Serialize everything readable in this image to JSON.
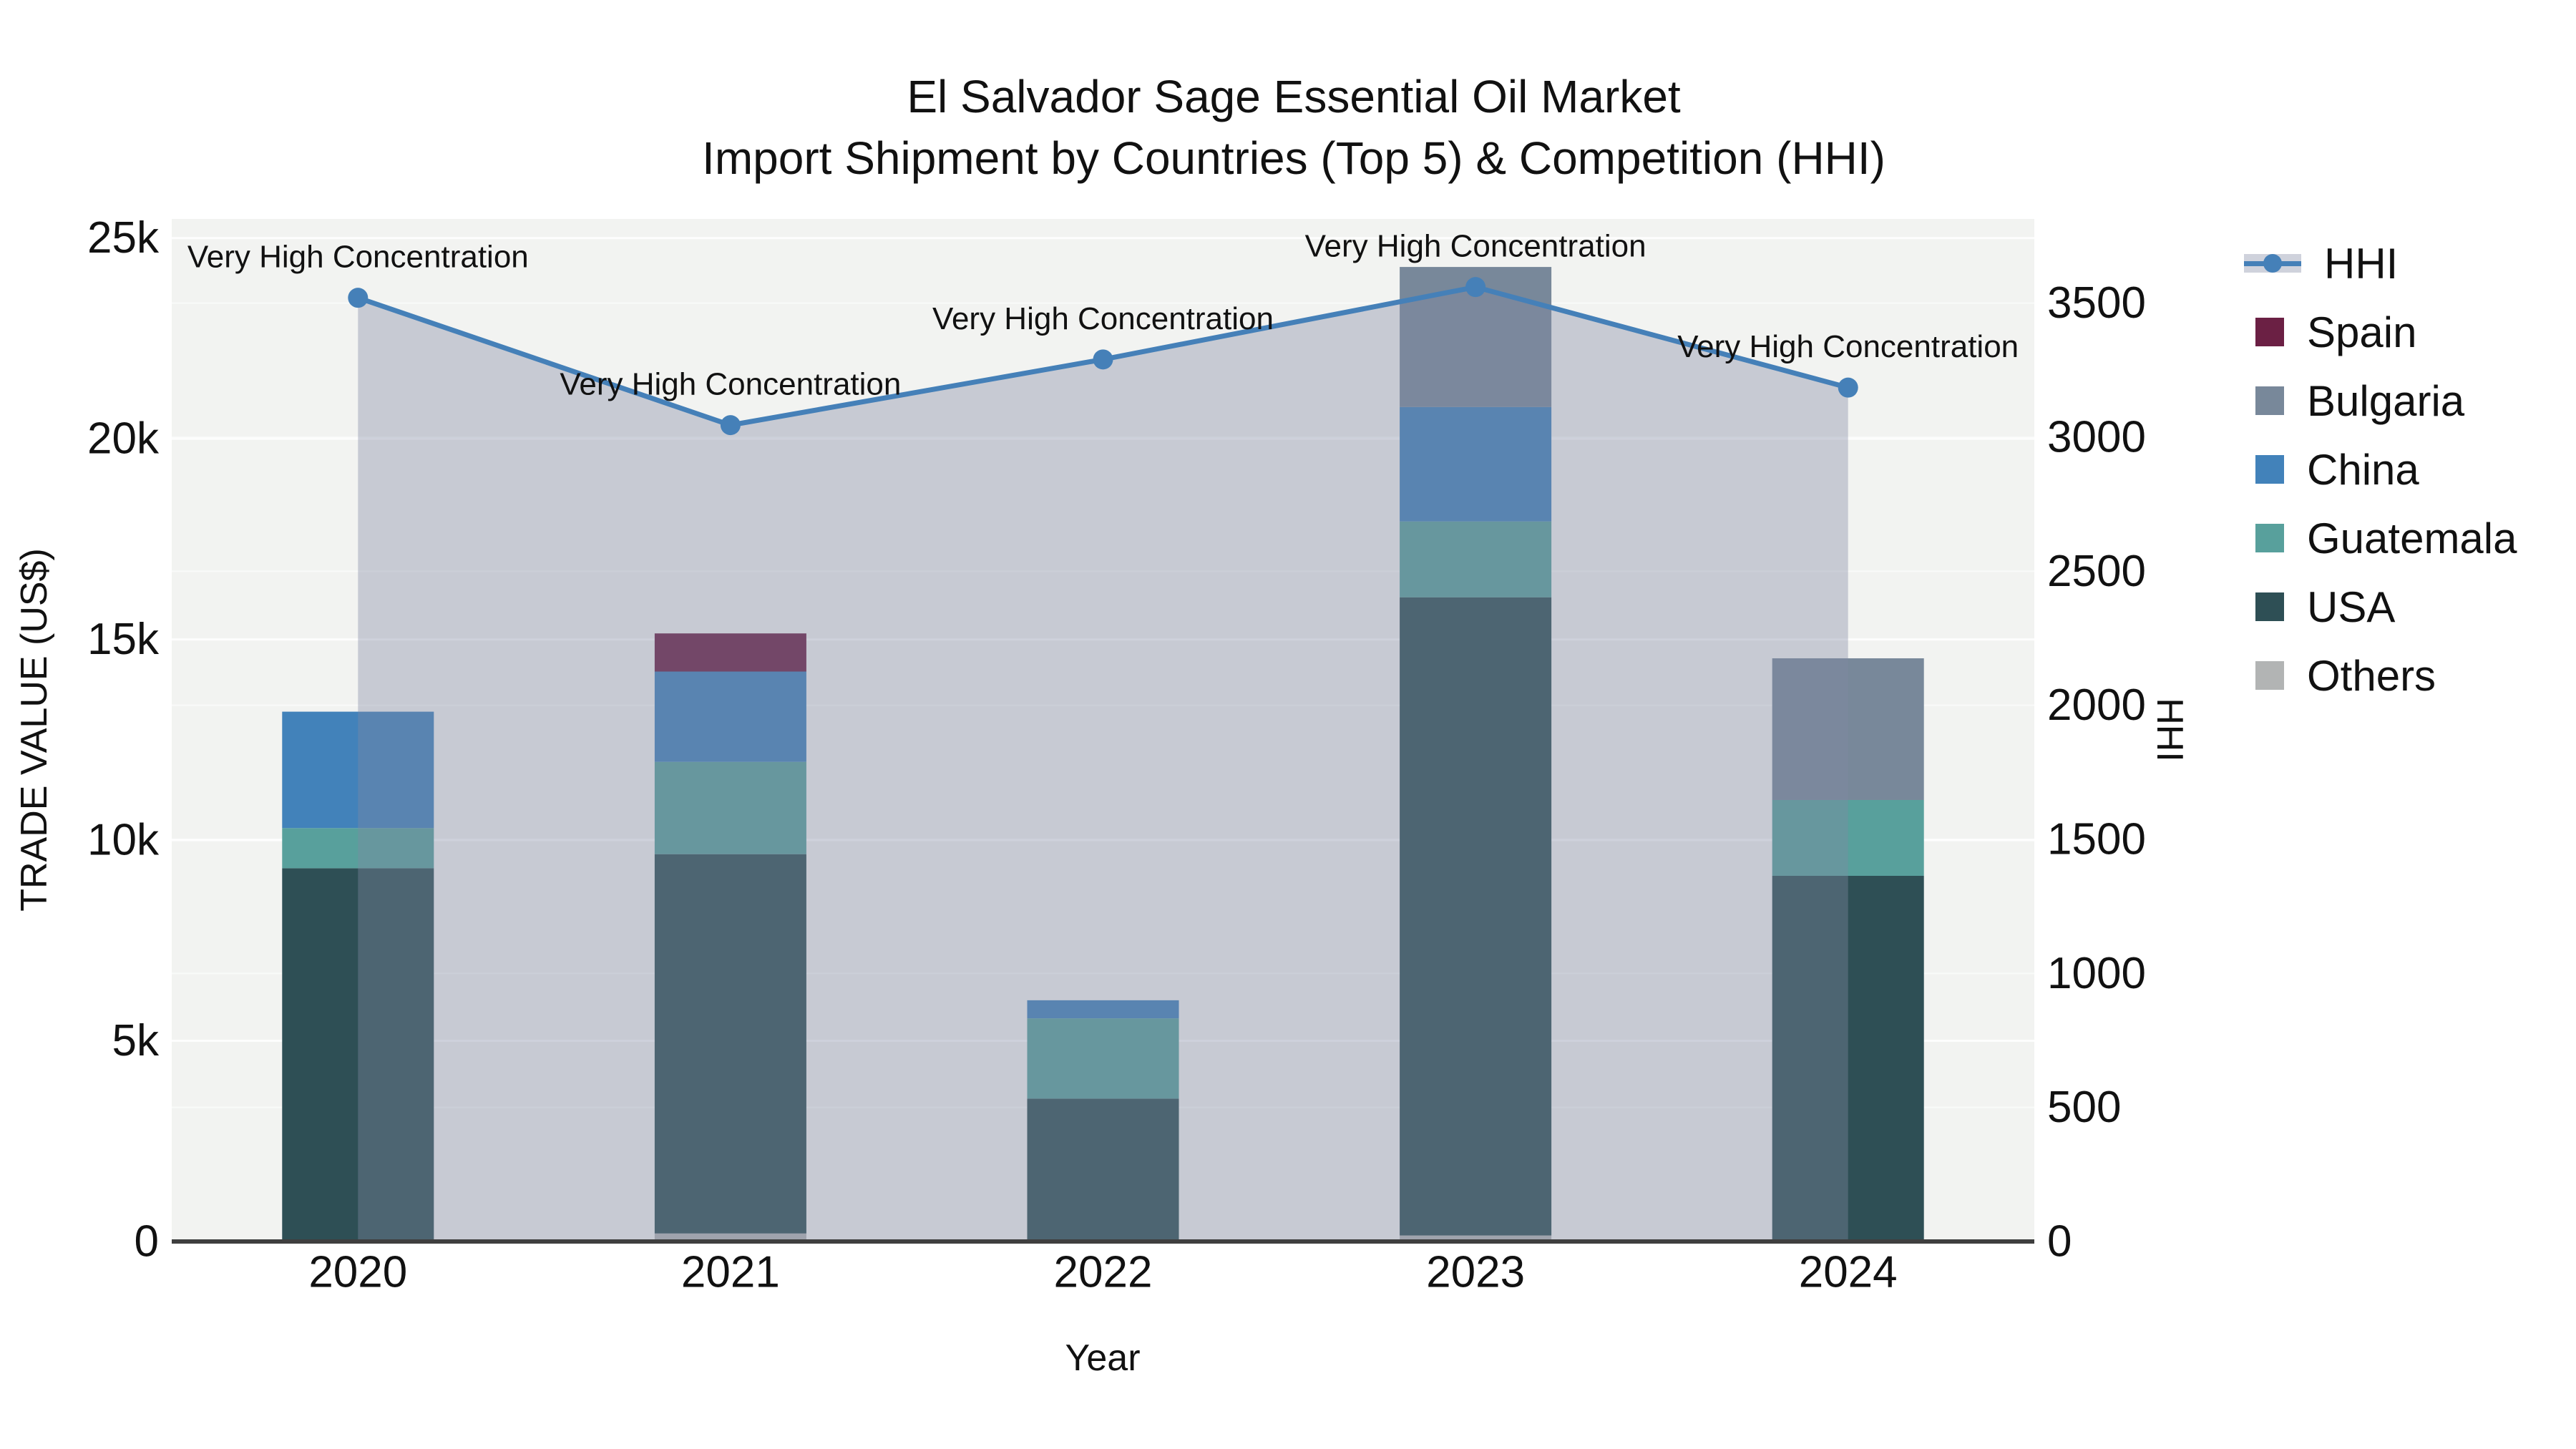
{
  "chart_data": {
    "type": "bar+line",
    "title": "El Salvador Sage Essential Oil Market",
    "subtitle": "Import Shipment by Countries (Top 5) & Competition (HHI)",
    "xlabel": "Year",
    "ylabel_left": "TRADE VALUE (US$)",
    "ylabel_right": "HHI",
    "categories": [
      "2020",
      "2021",
      "2022",
      "2023",
      "2024"
    ],
    "bar_series_stack_bottom_to_top": [
      {
        "name": "Others",
        "color": "#b2b4b4",
        "values": [
          0,
          200,
          0,
          150,
          0
        ]
      },
      {
        "name": "USA",
        "color": "#2e4f55",
        "values": [
          9300,
          9450,
          3560,
          15900,
          9110
        ]
      },
      {
        "name": "Guatemala",
        "color": "#58a09c",
        "values": [
          1000,
          2300,
          2000,
          1890,
          1890
        ]
      },
      {
        "name": "China",
        "color": "#4282ba",
        "values": [
          2900,
          2250,
          450,
          2850,
          0
        ]
      },
      {
        "name": "Bulgaria",
        "color": "#78889a",
        "values": [
          0,
          0,
          0,
          3490,
          3530
        ]
      },
      {
        "name": "Spain",
        "color": "#6b2044",
        "values": [
          0,
          950,
          0,
          0,
          0
        ]
      }
    ],
    "hhi_series": {
      "name": "HHI",
      "line_color": "#4580b8",
      "area_fill": "rgba(128,138,162,0.38)",
      "values": [
        3520,
        3045,
        3290,
        3560,
        3185
      ]
    },
    "annotations": [
      "Very High Concentration",
      "Very High Concentration",
      "Very High Concentration",
      "Very High Concentration",
      "Very High Concentration"
    ],
    "y_left_axis": {
      "range": [
        0,
        25476
      ],
      "ticks": [
        0,
        5000,
        10000,
        15000,
        20000,
        25000
      ],
      "tick_labels": [
        "0",
        "5k",
        "10k",
        "15k",
        "20k",
        "25k"
      ]
    },
    "y_right_axis": {
      "range": [
        0,
        3814
      ],
      "ticks": [
        0,
        500,
        1000,
        1500,
        2000,
        2500,
        3000,
        3500
      ],
      "tick_labels": [
        "0",
        "500",
        "1000",
        "1500",
        "2000",
        "2500",
        "3000",
        "3500"
      ]
    },
    "legend": {
      "position": "right",
      "items": [
        {
          "label": "HHI",
          "type": "line-marker",
          "color": "#4580b8"
        },
        {
          "label": "Spain",
          "type": "square",
          "color": "#6b2044"
        },
        {
          "label": "Bulgaria",
          "type": "square",
          "color": "#78889a"
        },
        {
          "label": "China",
          "type": "square",
          "color": "#4282ba"
        },
        {
          "label": "Guatemala",
          "type": "square",
          "color": "#58a09c"
        },
        {
          "label": "USA",
          "type": "square",
          "color": "#2e4f55"
        },
        {
          "label": "Others",
          "type": "square",
          "color": "#b2b4b4"
        }
      ]
    },
    "style_colors": {
      "plot_background": "#f2f3f1",
      "gridline": "#ffffff",
      "axis_line": "#3f3f3f",
      "text": "#111111"
    },
    "grid": true
  }
}
